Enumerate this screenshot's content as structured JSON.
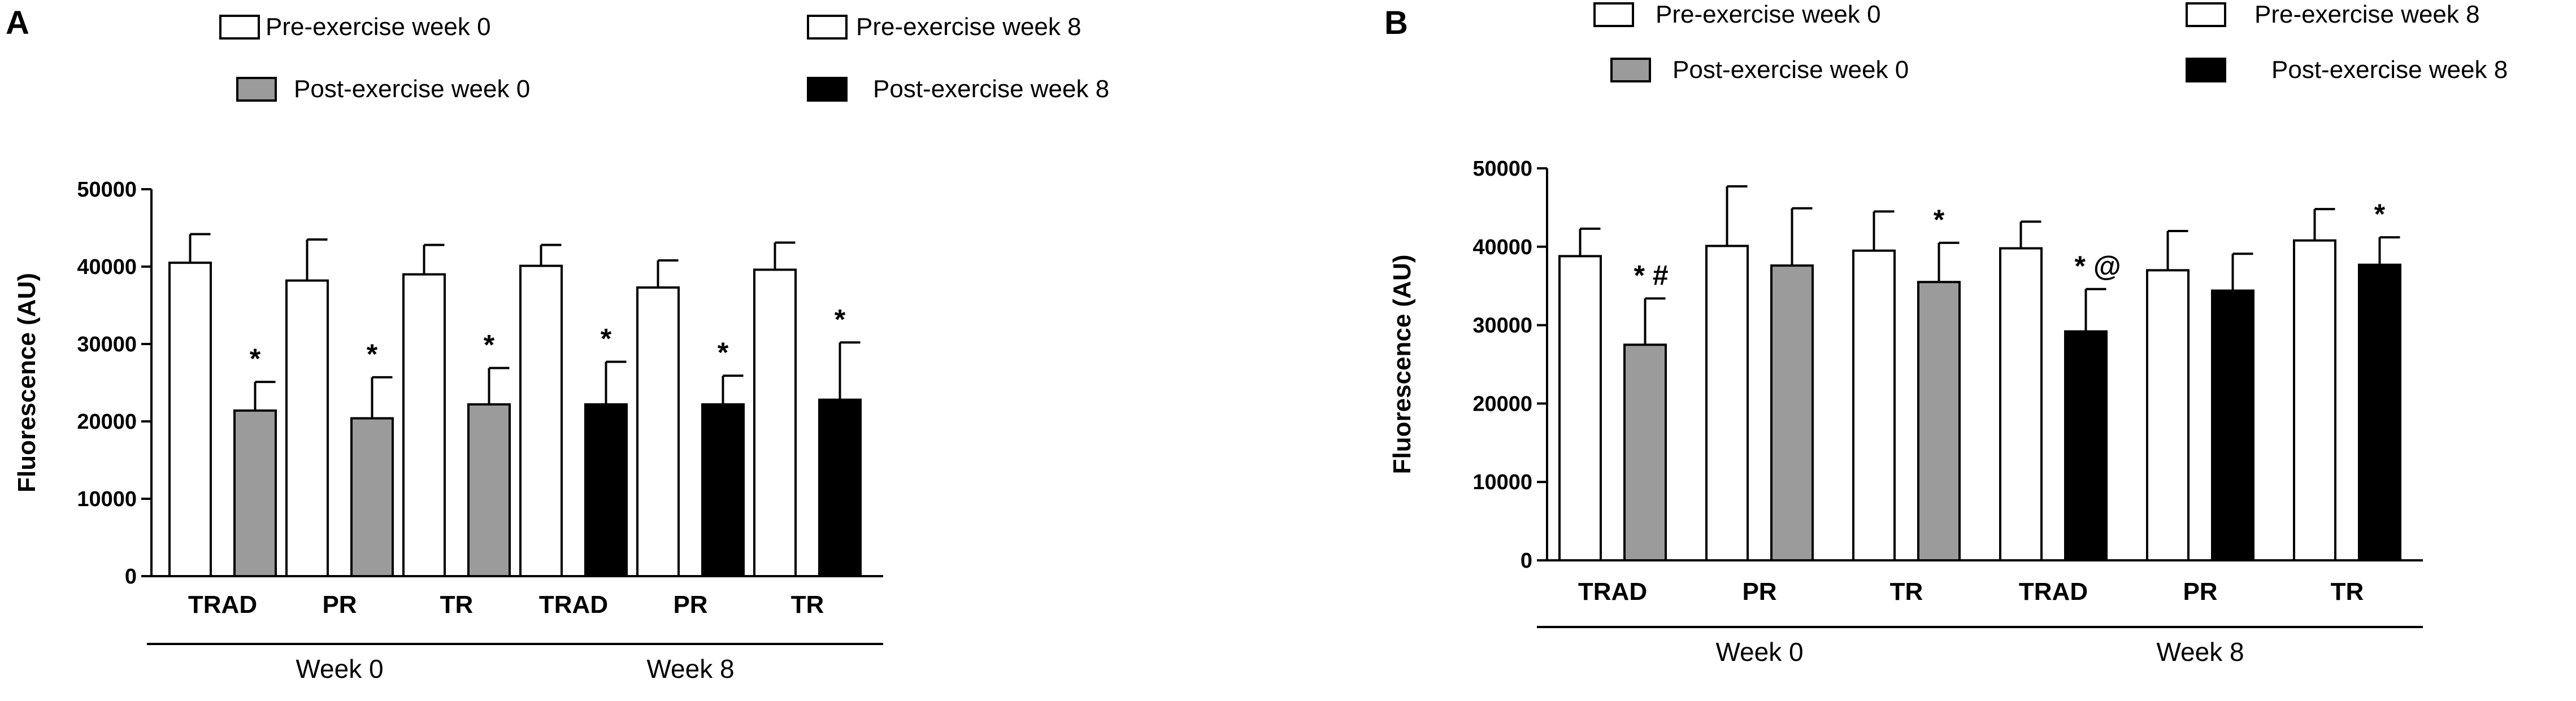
{
  "colors": {
    "pre": "#ffffff",
    "post_week0": "#9b9b9b",
    "post_week8": "#000000",
    "axis": "#000000"
  },
  "chart_data": [
    {
      "panel": "A",
      "type": "bar",
      "ylabel": "Fluorescence (AU)",
      "ylim": [
        0,
        50000
      ],
      "yticks": [
        0,
        10000,
        20000,
        30000,
        40000,
        50000
      ],
      "ytick_labels": [
        "0",
        "10000",
        "20000",
        "30000",
        "40000",
        "50000"
      ],
      "legend": [
        {
          "label": "Pre-exercise week 0",
          "color_key": "pre"
        },
        {
          "label": "Post-exercise week 0",
          "color_key": "post_week0"
        },
        {
          "label": "Pre-exercise week 8",
          "color_key": "pre"
        },
        {
          "label": "Post-exercise week 8",
          "color_key": "post_week8"
        }
      ],
      "categories": [
        "TRAD",
        "PR",
        "TR",
        "TRAD",
        "PR",
        "TR"
      ],
      "groups": [
        {
          "label": "Week 0",
          "start": 0,
          "end": 2
        },
        {
          "label": "Week 8",
          "start": 3,
          "end": 5
        }
      ],
      "series": [
        {
          "name": "Pre-exercise",
          "values": [
            40500,
            38200,
            39000,
            40100,
            37300,
            39600
          ],
          "errors": [
            3700,
            5300,
            3800,
            2700,
            3500,
            3500
          ]
        },
        {
          "name": "Post-exercise",
          "values": [
            21400,
            20400,
            22200,
            22200,
            22200,
            22800
          ],
          "errors": [
            3700,
            5300,
            4700,
            5500,
            3700,
            7400
          ]
        }
      ],
      "post_color_keys": [
        "post_week0",
        "post_week0",
        "post_week0",
        "post_week8",
        "post_week8",
        "post_week8"
      ],
      "annotations": [
        {
          "text": "*",
          "category": 0,
          "bar": "post"
        },
        {
          "text": "*",
          "category": 1,
          "bar": "post"
        },
        {
          "text": "*",
          "category": 2,
          "bar": "post"
        },
        {
          "text": "*",
          "category": 3,
          "bar": "post"
        },
        {
          "text": "*",
          "category": 4,
          "bar": "post"
        },
        {
          "text": "*",
          "category": 5,
          "bar": "post"
        }
      ]
    },
    {
      "panel": "B",
      "type": "bar",
      "ylabel": "Fluorescence (AU)",
      "ylim": [
        0,
        50000
      ],
      "yticks": [
        0,
        10000,
        20000,
        30000,
        40000,
        50000
      ],
      "ytick_labels": [
        "0",
        "10000",
        "20000",
        "30000",
        "40000",
        "50000"
      ],
      "legend": [
        {
          "label": "Pre-exercise week 0",
          "color_key": "pre"
        },
        {
          "label": "Post-exercise week 0",
          "color_key": "post_week0"
        },
        {
          "label": "Pre-exercise week 8",
          "color_key": "pre"
        },
        {
          "label": "Post-exercise week 8",
          "color_key": "post_week8"
        }
      ],
      "categories": [
        "TRAD",
        "PR",
        "TR",
        "TRAD",
        "PR",
        "TR"
      ],
      "groups": [
        {
          "label": "Week 0",
          "start": 0,
          "end": 2
        },
        {
          "label": "Week 8",
          "start": 3,
          "end": 5
        }
      ],
      "series": [
        {
          "name": "Pre-exercise",
          "values": [
            38800,
            40100,
            39500,
            39800,
            37000,
            40800
          ],
          "errors": [
            3500,
            7600,
            5000,
            3400,
            5000,
            4000
          ]
        },
        {
          "name": "Post-exercise",
          "values": [
            27500,
            37600,
            35500,
            29200,
            34400,
            37700
          ],
          "errors": [
            5900,
            7300,
            5000,
            5400,
            4700,
            3500
          ]
        }
      ],
      "post_color_keys": [
        "post_week0",
        "post_week0",
        "post_week0",
        "post_week8",
        "post_week8",
        "post_week8"
      ],
      "annotations": [
        {
          "text": "* #",
          "category": 0,
          "bar": "post"
        },
        {
          "text": "*",
          "category": 2,
          "bar": "post"
        },
        {
          "text": "* @",
          "category": 3,
          "bar": "post"
        },
        {
          "text": "*",
          "category": 5,
          "bar": "post"
        }
      ]
    }
  ]
}
